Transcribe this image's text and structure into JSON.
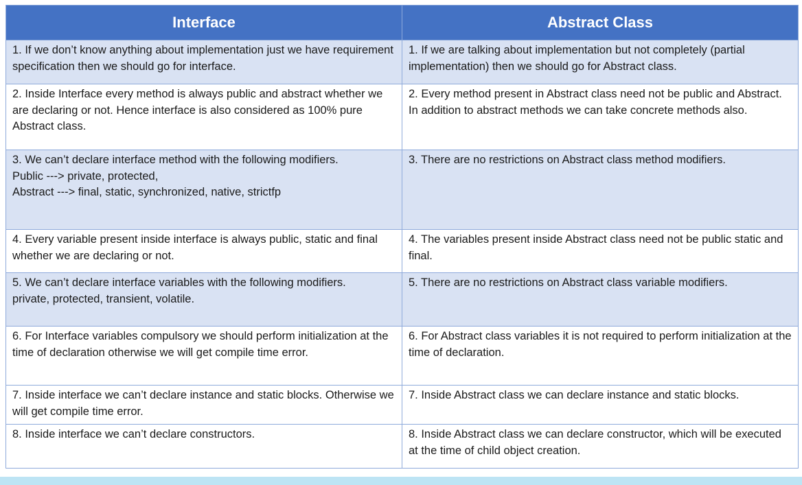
{
  "table": {
    "headers": [
      "Interface",
      "Abstract Class"
    ],
    "rows": [
      {
        "interface": "1. If we don’t know anything about implementation just we have requirement specification then we should go for interface.",
        "abstract": "1. If we are talking about implementation but not completely (partial implementation) then we should go for Abstract class."
      },
      {
        "interface": "2. Inside Interface every method is always public and abstract whether we are declaring or not. Hence interface is also considered as 100% pure Abstract class.",
        "abstract": "2. Every method present in Abstract class need not be public and Abstract. In addition to abstract methods we can take concrete methods also."
      },
      {
        "interface": "3. We can’t declare interface method with the following modifiers.\nPublic ---> private, protected,\nAbstract --->  final, static, synchronized, native, strictfp",
        "abstract": "3. There are no restrictions on Abstract class method modifiers."
      },
      {
        "interface": "4. Every variable present inside interface is always public, static and final whether we are declaring or not.",
        "abstract": "4. The variables present inside Abstract class need not be public static and final."
      },
      {
        "interface": "5. We can’t declare interface variables with the following modifiers.\nprivate, protected, transient, volatile.",
        "abstract": "5. There are no restrictions on Abstract class variable modifiers."
      },
      {
        "interface": "6. For Interface variables compulsory we should perform initialization at the time of declaration otherwise we will get compile time error.",
        "abstract": "6. For Abstract class variables it is not required to perform initialization at the time of declaration."
      },
      {
        "interface": "7. Inside interface we can’t declare instance and static blocks. Otherwise we will get compile time error.",
        "abstract": "7. Inside Abstract class we can declare instance and static blocks."
      },
      {
        "interface": "8. Inside interface we can’t declare constructors.",
        "abstract": "8. Inside Abstract class we can declare constructor, which will be executed at the time of child object creation."
      }
    ]
  }
}
